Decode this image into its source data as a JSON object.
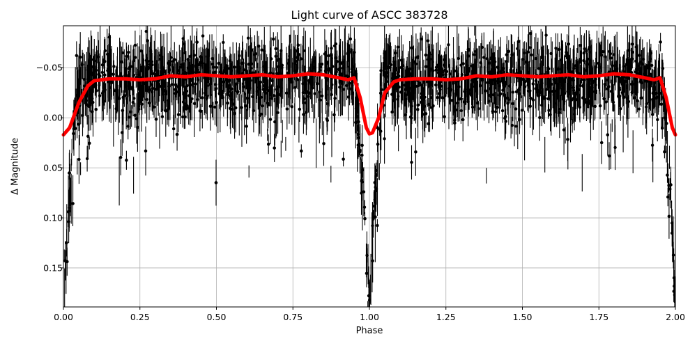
{
  "chart_data": {
    "type": "scatter",
    "title": "Light curve of ASCC 383728",
    "xlabel": "Phase",
    "ylabel": "Δ Magnitude",
    "xlim": [
      0.0,
      2.0
    ],
    "ylim": [
      0.189,
      -0.092
    ],
    "y_inverted": true,
    "grid": true,
    "xticks": [
      "0.00",
      "0.25",
      "0.50",
      "0.75",
      "1.00",
      "1.25",
      "1.50",
      "1.75",
      "2.00"
    ],
    "xtick_values": [
      0.0,
      0.25,
      0.5,
      0.75,
      1.0,
      1.25,
      1.5,
      1.75,
      2.0
    ],
    "yticks": [
      "−0.05",
      "0.00",
      "0.05",
      "0.10",
      "0.15"
    ],
    "ytick_values": [
      -0.05,
      0.0,
      0.05,
      0.1,
      0.15
    ],
    "series": [
      {
        "name": "observations",
        "style": "black points with error bars",
        "color": "#000000",
        "description": "dense scatter centered near -0.04 mag with large scatter (~±0.04), extending down to ~0.19 mag in eclipse at phase 0.0, 1.0 and 2.0"
      },
      {
        "name": "binned model",
        "style": "thick red line",
        "color": "#ff0000",
        "x": [
          0.0,
          0.02,
          0.05,
          0.08,
          0.1,
          0.15,
          0.2,
          0.25,
          0.3,
          0.35,
          0.4,
          0.45,
          0.5,
          0.55,
          0.6,
          0.65,
          0.7,
          0.75,
          0.8,
          0.85,
          0.9,
          0.93,
          0.95,
          0.97,
          0.99,
          1.0,
          1.01,
          1.03,
          1.05,
          1.08,
          1.1,
          1.15,
          1.2,
          1.25,
          1.3,
          1.35,
          1.4,
          1.45,
          1.5,
          1.55,
          1.6,
          1.65,
          1.7,
          1.75,
          1.8,
          1.85,
          1.9,
          1.93,
          1.95,
          1.97,
          1.99,
          2.0
        ],
        "values": [
          0.017,
          0.01,
          -0.015,
          -0.032,
          -0.037,
          -0.039,
          -0.039,
          -0.038,
          -0.039,
          -0.042,
          -0.041,
          -0.043,
          -0.042,
          -0.041,
          -0.042,
          -0.043,
          -0.041,
          -0.042,
          -0.044,
          -0.043,
          -0.04,
          -0.038,
          -0.04,
          -0.02,
          0.01,
          0.016,
          0.015,
          0.0,
          -0.025,
          -0.036,
          -0.038,
          -0.039,
          -0.039,
          -0.038,
          -0.039,
          -0.042,
          -0.041,
          -0.043,
          -0.042,
          -0.041,
          -0.042,
          -0.043,
          -0.041,
          -0.042,
          -0.044,
          -0.043,
          -0.04,
          -0.038,
          -0.04,
          -0.02,
          0.01,
          0.017
        ]
      }
    ]
  }
}
